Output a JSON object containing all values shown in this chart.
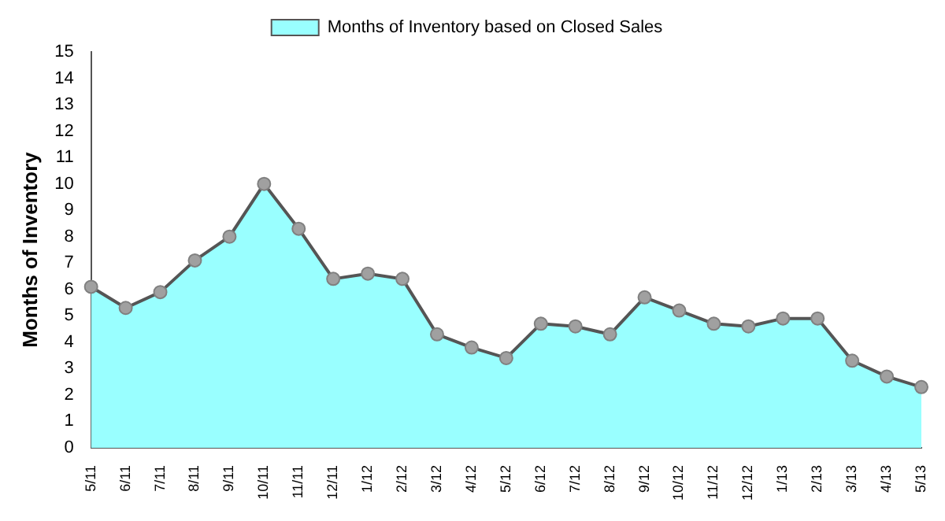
{
  "chart_data": {
    "type": "area",
    "ylabel": "Months of Inventory",
    "categories": [
      "5/11",
      "6/11",
      "7/11",
      "8/11",
      "9/11",
      "10/11",
      "11/11",
      "12/11",
      "1/12",
      "2/12",
      "3/12",
      "4/12",
      "5/12",
      "6/12",
      "7/12",
      "8/12",
      "9/12",
      "10/12",
      "11/12",
      "12/12",
      "1/13",
      "2/13",
      "3/13",
      "4/13",
      "5/13"
    ],
    "series": [
      {
        "name": "Months of Inventory based on Closed Sales",
        "color": "#99ffff",
        "values": [
          6.1,
          5.3,
          5.9,
          7.1,
          8.0,
          10.0,
          8.3,
          6.4,
          6.6,
          6.4,
          4.3,
          3.8,
          3.4,
          4.7,
          4.6,
          4.3,
          5.7,
          5.2,
          4.7,
          4.6,
          4.9,
          4.9,
          3.3,
          2.7,
          2.3
        ]
      }
    ],
    "ylim": [
      0,
      15
    ],
    "yticks": [
      0,
      1,
      2,
      3,
      4,
      5,
      6,
      7,
      8,
      9,
      10,
      11,
      12,
      13,
      14,
      15
    ],
    "grid": false,
    "legend": "top",
    "marker": "circle"
  }
}
